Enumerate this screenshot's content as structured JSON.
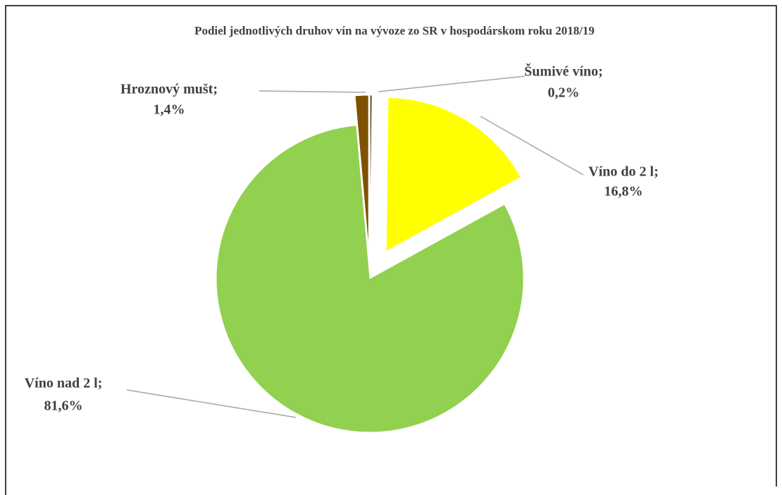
{
  "chart_data": {
    "type": "pie",
    "title": "Podiel jednotlivých druhov vín na vývoze zo SR v hospodárskom roku 2018/19",
    "categories": [
      "Šumivé víno;",
      "Víno do 2 l;",
      "Víno nad 2 l;",
      "Hroznový mušt;"
    ],
    "values": [
      0.2,
      16.8,
      81.6,
      1.4
    ],
    "value_labels": [
      "0,2%",
      "16,8%",
      "81,6%",
      "1,4%"
    ],
    "colors": [
      "#3a2a00",
      "#ffff00",
      "#92d050",
      "#7f5200"
    ]
  }
}
